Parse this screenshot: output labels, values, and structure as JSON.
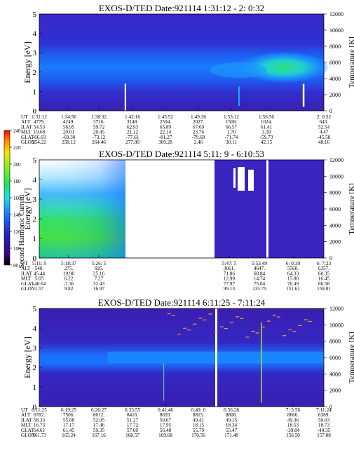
{
  "colorbar": {
    "label": "Second Harmonic Current",
    "ticks": [
      "80",
      "100",
      "120",
      "140",
      "160",
      "180",
      "200",
      "220",
      "240"
    ]
  },
  "row_labels": [
    "UT",
    "ALT",
    "ILAT",
    "MLT",
    "GLAT",
    "GLON"
  ],
  "chart_data": [
    {
      "type": "heatmap",
      "title": "EXOS-D/TED   Date:921114   1:31:12 - 2: 0:32",
      "ylabel": "Energy [eV]",
      "ylabel_right": "Temperature [K]",
      "y_ticks": [
        "0",
        "1",
        "2",
        "3",
        "4",
        "5"
      ],
      "y_right_ticks": [
        "0",
        "2000",
        "4000",
        "6000",
        "8000",
        "10000",
        "12000"
      ],
      "ylim": [
        0,
        5
      ],
      "ylim_right": [
        0,
        12000
      ],
      "columns": [
        [
          "1:31:12",
          "4779.",
          "54.53",
          "19.68",
          "-66.03",
          "254.22"
        ],
        [
          "1:34:56",
          "4249.",
          "56.95",
          "20.01",
          "-69.30",
          "258.12"
        ],
        [
          "1:38:32",
          "3716.",
          "59.72",
          "20.45",
          "-73.12",
          "264.46"
        ],
        [
          "1:42:16",
          "3148.",
          "62.93",
          "21.12",
          "-77.61",
          "277.80"
        ],
        [
          "1:45:52",
          "2594.",
          "65.89",
          "22.14",
          "-81.27",
          "309.28"
        ],
        [
          "1:49:36",
          "2027.",
          "67.69",
          "23.76",
          "-79.68",
          "2.46"
        ],
        [
          "1:53:12",
          "1508.",
          "66.57",
          "1.70",
          "-71.74",
          "30.11"
        ],
        [
          "1:56:56",
          "1024.",
          "61.41",
          "3.39",
          "-59.73",
          "42.15"
        ],
        [
          "2: 0:32",
          "643.",
          "52.54",
          "4.47",
          "-45.58",
          "48.16"
        ]
      ]
    },
    {
      "type": "heatmap",
      "title": "EXOS-D/TED   Date:921114   5:11: 9 - 6:10:53",
      "ylabel": "Energy [eV]",
      "ylabel_right": "Temperature [K]",
      "y_ticks": [
        "0",
        "1",
        "2",
        "3",
        "4",
        "5"
      ],
      "y_right_ticks": [
        "0",
        "2000",
        "4000",
        "6000",
        "8000",
        "10000",
        "12000"
      ],
      "ylim": [
        0,
        5
      ],
      "ylim_right": [
        0,
        12000
      ],
      "columns": [
        [
          "5:11: 9",
          "540.",
          "45.44",
          "5.05",
          "-40.64",
          "1.57"
        ],
        [
          "5:18:37",
          "275.",
          "19.90",
          "6.22",
          "-7.36",
          "9.82"
        ],
        [
          "5:26: 5",
          "695.",
          "25.16",
          "7.27",
          "32.43",
          "16.97"
        ],
        [
          "5:47: 5",
          "3661.",
          "71.86",
          "12.99",
          "77.97",
          "99.13"
        ],
        [
          "5:53:49",
          "4647.",
          "68.84",
          "14.74",
          "75.04",
          "135.75"
        ],
        [
          "6: 0:39",
          "5560.",
          "64.33",
          "15.80",
          "70.49",
          "151.61"
        ],
        [
          "6: 7:23",
          "6357.",
          "60.35",
          "16.45",
          "66.58",
          "159.01"
        ]
      ]
    },
    {
      "type": "heatmap",
      "title": "EXOS-D/TED   Date:921114   6:11:25 - 7:11:24",
      "ylabel": "Energy [eV]",
      "ylabel_right": "Temperature [K]",
      "y_ticks": [
        "0",
        "1",
        "2",
        "3",
        "4",
        "5"
      ],
      "y_right_ticks": [
        "0",
        "2000",
        "4000",
        "6000",
        "8000",
        "10000",
        "12000"
      ],
      "ylim": [
        0,
        5
      ],
      "ylim_right": [
        0,
        12000
      ],
      "columns": [
        [
          "6:11:25",
          "6782.",
          "58.33",
          "16.73",
          "64.61",
          "161.73"
        ],
        [
          "6:19:25",
          "7506.",
          "55.08",
          "17.17",
          "61.45",
          "165.24"
        ],
        [
          "6:26:27",
          "8012.",
          "52.95",
          "17.46",
          "59.35",
          "167.16"
        ],
        [
          "6:33:55",
          "8416.",
          "51.27",
          "17.72",
          "57.69",
          "168.57"
        ],
        [
          "6:41:46",
          "8693.",
          "50.07",
          "17.95",
          "56.48",
          "169.68"
        ],
        [
          "6:49: 0",
          "8815.",
          "49.41",
          "18.15",
          "55.79",
          "170.56"
        ],
        [
          "6:56:28",
          "8808.",
          "49.15",
          "18.34",
          "55.47",
          "171.48"
        ],
        [
          "7: 3:56",
          "8666.",
          "49.36",
          "18.53",
          "-39.84",
          "156.50"
        ],
        [
          "7:11:24",
          "8389.",
          "50.03",
          "18.73",
          "-40.35",
          "157.08"
        ]
      ]
    }
  ]
}
